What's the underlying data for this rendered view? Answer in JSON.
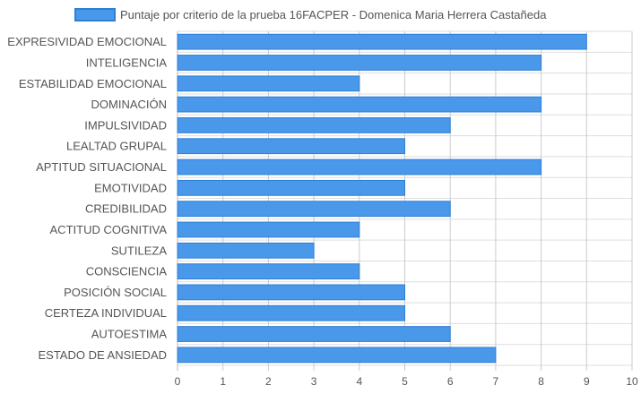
{
  "chart_data": {
    "type": "bar",
    "orientation": "horizontal",
    "categories": [
      "EXPRESIVIDAD EMOCIONAL",
      "INTELIGENCIA",
      "ESTABILIDAD EMOCIONAL",
      "DOMINACIÓN",
      "IMPULSIVIDAD",
      "LEALTAD GRUPAL",
      "APTITUD SITUACIONAL",
      "EMOTIVIDAD",
      "CREDIBILIDAD",
      "ACTITUD COGNITIVA",
      "SUTILEZA",
      "CONSCIENCIA",
      "POSICIÓN SOCIAL",
      "CERTEZA INDIVIDUAL",
      "AUTOESTIMA",
      "ESTADO DE ANSIEDAD"
    ],
    "series": [
      {
        "name": "Puntaje por criterio de la prueba 16FACPER - Domenica Maria Herrera  Castañeda",
        "values": [
          9,
          8,
          4,
          8,
          6,
          5,
          8,
          5,
          6,
          4,
          3,
          4,
          5,
          5,
          6,
          7
        ]
      }
    ],
    "xlim": [
      0,
      10
    ],
    "xticks": [
      "0",
      "1",
      "2",
      "3",
      "4",
      "5",
      "6",
      "7",
      "8",
      "9",
      "10"
    ],
    "grid": true,
    "legend_position": "top",
    "colors": {
      "bar_fill": "#4a98ea",
      "bar_stroke": "#2e7fd6",
      "grid": "#dddddd"
    }
  }
}
